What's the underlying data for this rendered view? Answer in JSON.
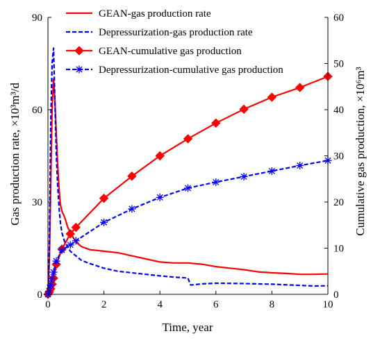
{
  "chart_data": {
    "type": "line",
    "xlabel": "Time, year",
    "ylabel_left": "Gas production rate, ×10³m³/d",
    "ylabel_right": "Cumulative gas production, ×10⁶m³",
    "xlim": [
      0,
      10
    ],
    "ylim_left": [
      0,
      90
    ],
    "ylim_right": [
      0,
      60
    ],
    "xticks": [
      "0",
      "2",
      "4",
      "6",
      "8",
      "10"
    ],
    "yticks_left": [
      "0",
      "30",
      "60",
      "90"
    ],
    "yticks_right": [
      "0",
      "10",
      "20",
      "30",
      "40",
      "50",
      "60"
    ],
    "grid": false,
    "legend_position": "top",
    "series": [
      {
        "name": "GEAN-gas production rate",
        "axis": "left",
        "color": "#ff0000",
        "style": "solid",
        "marker": "none",
        "x": [
          0,
          0.05,
          0.1,
          0.15,
          0.2,
          0.25,
          0.3,
          0.35,
          0.4,
          0.45,
          0.5,
          0.6,
          0.7,
          0.8,
          1.0,
          1.2,
          1.5,
          2.0,
          2.5,
          3.0,
          3.5,
          4.0,
          4.5,
          5.0,
          5.5,
          6.0,
          6.5,
          7.0,
          7.5,
          8.0,
          8.5,
          9.0,
          9.5,
          10.0
        ],
        "y": [
          0,
          10,
          35,
          60,
          70,
          63,
          52,
          42,
          34,
          29,
          27,
          25,
          22,
          20,
          17,
          15.5,
          14.5,
          14,
          13.5,
          12.5,
          11.5,
          10.5,
          10.2,
          10.2,
          9.8,
          9,
          8.5,
          8,
          7.3,
          7,
          6.8,
          6.5,
          6.5,
          6.6
        ]
      },
      {
        "name": "Depressurization-gas production rate",
        "axis": "left",
        "color": "#0000ff",
        "style": "dashed",
        "marker": "none",
        "x": [
          0,
          0.05,
          0.1,
          0.15,
          0.2,
          0.25,
          0.3,
          0.35,
          0.4,
          0.45,
          0.5,
          0.6,
          0.7,
          0.8,
          1.0,
          1.2,
          1.5,
          2.0,
          2.5,
          3.0,
          3.5,
          4.0,
          4.5,
          5.0,
          5.1,
          5.5,
          6.0,
          7.0,
          8.0,
          9.0,
          9.5,
          10.0
        ],
        "y": [
          0,
          15,
          55,
          75,
          80,
          62,
          45,
          35,
          28,
          23,
          20,
          17,
          15.5,
          14,
          12.5,
          11,
          10,
          8.5,
          7.5,
          7,
          6.5,
          6,
          5.6,
          5.3,
          3,
          3.4,
          3.6,
          3.5,
          3.3,
          2.9,
          2.7,
          2.8
        ]
      },
      {
        "name": "GEAN-cumulative gas production",
        "axis": "right",
        "color": "#ff0000",
        "style": "solid",
        "marker": "diamond",
        "x": [
          0,
          0.05,
          0.1,
          0.15,
          0.2,
          0.3,
          0.5,
          0.8,
          1.0,
          2.0,
          3.0,
          4.0,
          5.0,
          6.0,
          7.0,
          8.0,
          9.0,
          10.0
        ],
        "y": [
          0,
          0.5,
          1.2,
          2.2,
          3.5,
          6.5,
          9.8,
          13.1,
          14.5,
          20.8,
          25.6,
          30.0,
          33.7,
          37.1,
          40.1,
          42.7,
          44.8,
          47.2
        ]
      },
      {
        "name": "Depressurization-cumulative gas production",
        "axis": "right",
        "color": "#0000ff",
        "style": "dashed",
        "marker": "asterisk",
        "x": [
          0,
          0.05,
          0.1,
          0.15,
          0.2,
          0.3,
          0.5,
          0.8,
          1.0,
          2.0,
          3.0,
          4.0,
          5.0,
          6.0,
          7.0,
          8.0,
          9.0,
          10.0
        ],
        "y": [
          0,
          0.7,
          2.0,
          3.4,
          4.8,
          7.2,
          9.6,
          10.7,
          11.6,
          15.6,
          18.5,
          21.0,
          23.0,
          24.3,
          25.5,
          26.7,
          27.9,
          29.0
        ]
      }
    ]
  }
}
